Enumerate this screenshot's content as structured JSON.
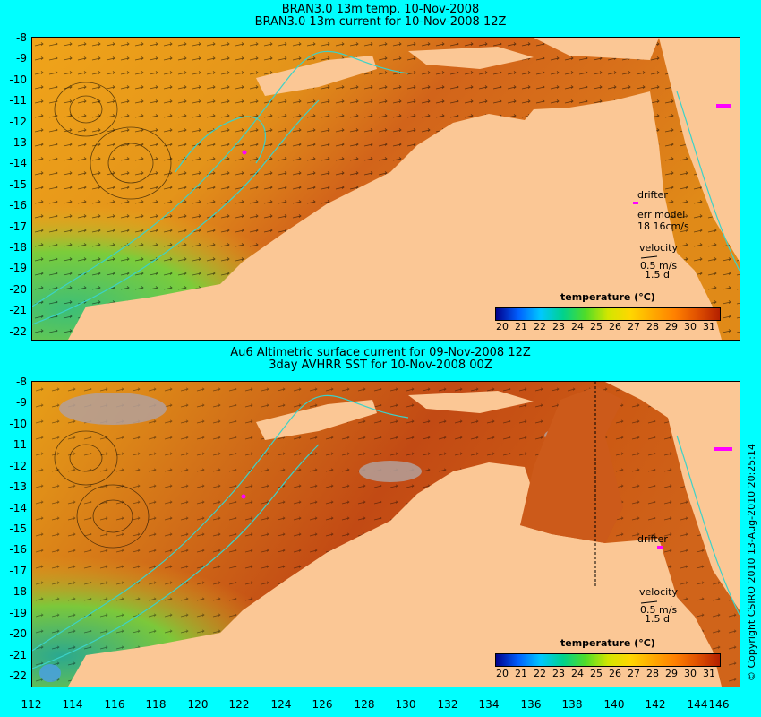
{
  "top_panel": {
    "title_line1": "BRAN3.0 13m temp. 10-Nov-2008",
    "title_line2": "BRAN3.0 13m current for 10-Nov-2008 12Z",
    "legend": {
      "drifter_label": "drifter",
      "err_model_label": "err model",
      "err_model_value": "18 16cm/s",
      "velocity_label": "velocity",
      "velocity_scale": "0.5 m/s",
      "velocity_time": "1.5 d"
    },
    "colorbar": {
      "title": "temperature (°C)",
      "ticks": [
        "20",
        "21",
        "22",
        "23",
        "24",
        "25",
        "26",
        "27",
        "28",
        "29",
        "30",
        "31"
      ]
    }
  },
  "bottom_panel": {
    "title_line1": "Au6 Altimetric surface current for 09-Nov-2008 12Z",
    "title_line2": "3day AVHRR SST for 10-Nov-2008 00Z",
    "legend": {
      "drifter_label": "drifter",
      "velocity_label": "velocity",
      "velocity_scale": "0.5 m/s",
      "velocity_time": "1.5 d"
    },
    "colorbar": {
      "title": "temperature (°C)",
      "ticks": [
        "20",
        "21",
        "22",
        "23",
        "24",
        "25",
        "26",
        "27",
        "28",
        "29",
        "30",
        "31"
      ]
    }
  },
  "latitude_ticks": [
    "-8",
    "-9",
    "-10",
    "-11",
    "-12",
    "-13",
    "-14",
    "-15",
    "-16",
    "-17",
    "-18",
    "-19",
    "-20",
    "-21",
    "-22"
  ],
  "longitude_ticks": [
    "112",
    "114",
    "116",
    "118",
    "120",
    "122",
    "124",
    "126",
    "128",
    "130",
    "132",
    "134",
    "136",
    "138",
    "140",
    "142",
    "144",
    "146"
  ],
  "copyright": "© Copyright CSIRO 2010   13-Aug-2010 20:25:14",
  "colors": {
    "page_background": "#00ffff",
    "land": "#fbc795",
    "ocean_warm": "#e08a10",
    "ocean_hot": "#c24a10",
    "ocean_cool": "#46c85a",
    "contour": "#3cd2c8",
    "drifter": "#ff00ff"
  }
}
